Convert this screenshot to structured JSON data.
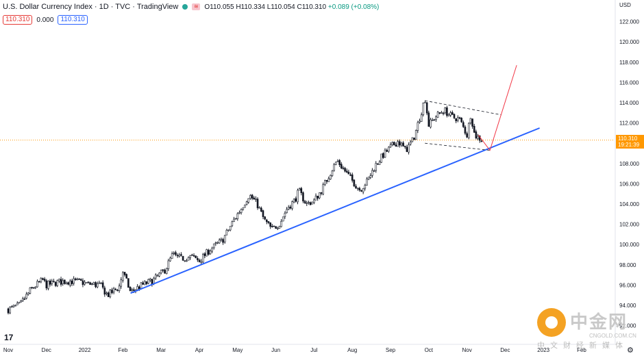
{
  "header": {
    "title": "U.S. Dollar Currency Index · 1D · TVC · TradingView",
    "tv_badge": "≋",
    "ohlc": "O110.055 H110.334 L110.054 C110.310",
    "change": "+0.089 (+0.08%)",
    "sell_price": "110.310",
    "spread": "0.000",
    "buy_price": "110.310"
  },
  "price_label": {
    "price": "110.310",
    "countdown": "19:21:39"
  },
  "logo": "17",
  "watermark": {
    "brand": "中金网",
    "domain": "CNGOLD.COM.CN",
    "tagline": "中文财经新媒体"
  },
  "colors": {
    "up": "#ffffff",
    "down": "#131722",
    "trendline": "#2962ff",
    "projection": "#f23645",
    "current_price": "#ff9800"
  },
  "chart_data": {
    "type": "candlestick",
    "title": "U.S. Dollar Currency Index · 1D · TVC · TradingView",
    "y_axis": {
      "unit": "USD",
      "ylim": [
        91.5,
        124
      ],
      "ticks": [
        "122.000",
        "120.000",
        "118.000",
        "116.000",
        "114.000",
        "112.000",
        "110.000",
        "108.000",
        "106.000",
        "104.000",
        "102.000",
        "100.000",
        "98.000",
        "96.000",
        "94.000",
        "92.000"
      ]
    },
    "x_axis": {
      "range_months": [
        0,
        15.3
      ],
      "ticks": [
        {
          "label": "Nov",
          "m": 0
        },
        {
          "label": "Dec",
          "m": 1
        },
        {
          "label": "2022",
          "m": 2
        },
        {
          "label": "Feb",
          "m": 3
        },
        {
          "label": "Mar",
          "m": 4
        },
        {
          "label": "Apr",
          "m": 5
        },
        {
          "label": "May",
          "m": 6
        },
        {
          "label": "Jun",
          "m": 7
        },
        {
          "label": "Jul",
          "m": 8
        },
        {
          "label": "Aug",
          "m": 9
        },
        {
          "label": "Sep",
          "m": 10
        },
        {
          "label": "Oct",
          "m": 11
        },
        {
          "label": "Nov",
          "m": 12
        },
        {
          "label": "Dec",
          "m": 13
        },
        {
          "label": "2023",
          "m": 14
        },
        {
          "label": "Feb",
          "m": 15
        }
      ]
    },
    "price_path": [
      [
        0.0,
        93.6
      ],
      [
        0.3,
        94.0
      ],
      [
        0.6,
        95.6
      ],
      [
        0.9,
        96.5
      ],
      [
        1.0,
        96.0
      ],
      [
        1.3,
        96.3
      ],
      [
        1.6,
        96.4
      ],
      [
        1.9,
        96.3
      ],
      [
        2.1,
        96.1
      ],
      [
        2.4,
        96.0
      ],
      [
        2.6,
        95.0
      ],
      [
        2.9,
        95.8
      ],
      [
        3.0,
        97.3
      ],
      [
        3.2,
        95.3
      ],
      [
        3.5,
        96.0
      ],
      [
        3.8,
        96.5
      ],
      [
        4.1,
        97.5
      ],
      [
        4.3,
        99.0
      ],
      [
        4.5,
        98.6
      ],
      [
        4.8,
        98.8
      ],
      [
        5.0,
        98.4
      ],
      [
        5.3,
        99.6
      ],
      [
        5.6,
        100.4
      ],
      [
        5.9,
        102.4
      ],
      [
        6.1,
        103.6
      ],
      [
        6.3,
        104.9
      ],
      [
        6.5,
        104.1
      ],
      [
        6.7,
        102.4
      ],
      [
        6.9,
        101.5
      ],
      [
        7.1,
        102.1
      ],
      [
        7.3,
        103.6
      ],
      [
        7.5,
        104.4
      ],
      [
        7.6,
        105.3
      ],
      [
        7.8,
        104.0
      ],
      [
        8.0,
        104.3
      ],
      [
        8.2,
        105.4
      ],
      [
        8.4,
        106.9
      ],
      [
        8.6,
        108.3
      ],
      [
        8.8,
        107.3
      ],
      [
        9.0,
        106.3
      ],
      [
        9.2,
        105.4
      ],
      [
        9.4,
        106.3
      ],
      [
        9.6,
        107.8
      ],
      [
        9.8,
        108.8
      ],
      [
        10.0,
        109.6
      ],
      [
        10.2,
        110.2
      ],
      [
        10.4,
        109.3
      ],
      [
        10.6,
        110.4
      ],
      [
        10.8,
        113.0
      ],
      [
        10.9,
        114.5
      ],
      [
        11.0,
        111.8
      ],
      [
        11.2,
        112.7
      ],
      [
        11.4,
        113.3
      ],
      [
        11.6,
        112.6
      ],
      [
        11.8,
        112.4
      ],
      [
        12.0,
        110.8
      ],
      [
        12.1,
        112.9
      ],
      [
        12.2,
        110.8
      ],
      [
        12.4,
        110.3
      ]
    ],
    "annotations": {
      "trendline": {
        "x1": 3.2,
        "y1": 95.2,
        "x2": 13.9,
        "y2": 111.5
      },
      "channel_upper": {
        "x1": 10.9,
        "y1": 114.2,
        "x2": 12.9,
        "y2": 112.8
      },
      "channel_lower": {
        "x1": 10.9,
        "y1": 110.0,
        "x2": 12.6,
        "y2": 109.3
      },
      "projection": [
        [
          12.3,
          110.8
        ],
        [
          12.6,
          109.3
        ],
        [
          13.3,
          117.7
        ]
      ],
      "current_price": 110.31
    }
  }
}
